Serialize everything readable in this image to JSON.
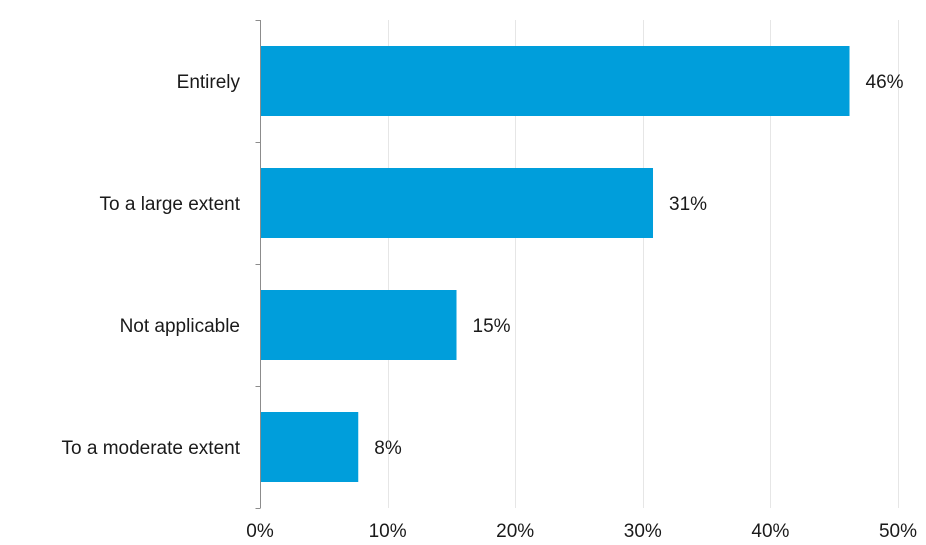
{
  "chart_data": {
    "type": "bar",
    "orientation": "horizontal",
    "categories": [
      "Entirely",
      "To a large extent",
      "Not applicable",
      "To a moderate extent"
    ],
    "values": [
      46.2,
      30.8,
      15.4,
      7.7
    ],
    "data_labels": [
      "46%",
      "31%",
      "15%",
      "8%"
    ],
    "xlim": [
      0,
      50
    ],
    "x_ticks": [
      0,
      10,
      20,
      30,
      40,
      50
    ],
    "x_tick_labels": [
      "0%",
      "10%",
      "20%",
      "30%",
      "40%",
      "50%"
    ],
    "title": "",
    "xlabel": "",
    "ylabel": "",
    "grid": "vertical",
    "legend": "none",
    "colors": {
      "bar": "#009edb"
    }
  }
}
